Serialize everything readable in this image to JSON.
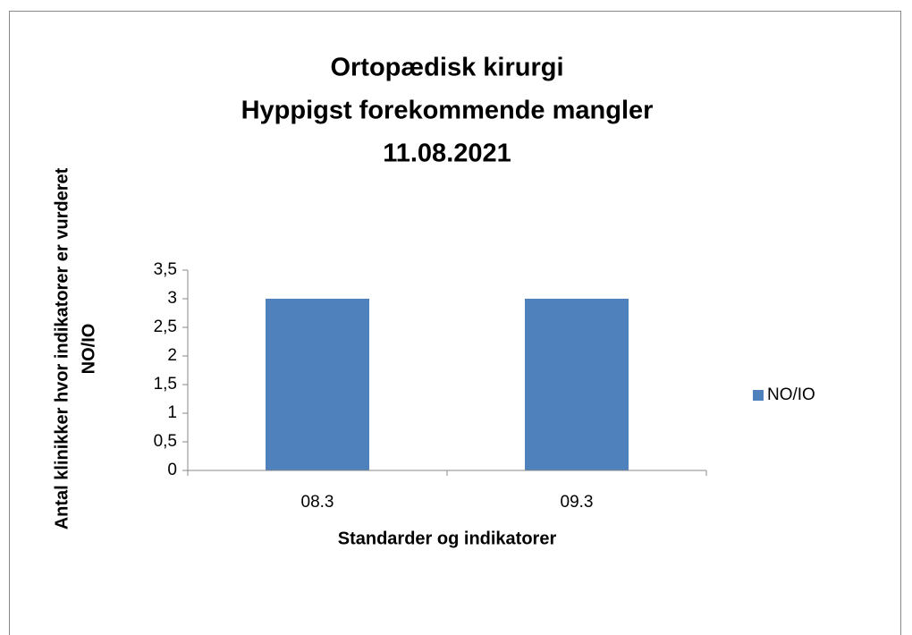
{
  "chart_data": {
    "type": "bar",
    "title": [
      "Ortopædisk kirurgi",
      "Hyppigst forekommende mangler",
      "11.08.2021"
    ],
    "y_label": [
      "Antal klinikker hvor indikatorer er vurderet",
      "NO/IO"
    ],
    "x_label": "Standarder og indikatorer",
    "categories": [
      "08.3",
      "09.3"
    ],
    "series": [
      {
        "name": "NO/IO",
        "color": "#4f81bd",
        "values": [
          3,
          3
        ]
      }
    ],
    "ylim": [
      0,
      3.5
    ],
    "yticks": [
      0,
      {
        "value": 0.5,
        "label": "0,5"
      },
      1,
      {
        "value": 1.5,
        "label": "1,5"
      },
      2,
      {
        "value": 2.5,
        "label": "2,5"
      },
      3,
      {
        "value": 3.5,
        "label": "3,5"
      }
    ],
    "grid": false,
    "legend": "right"
  }
}
